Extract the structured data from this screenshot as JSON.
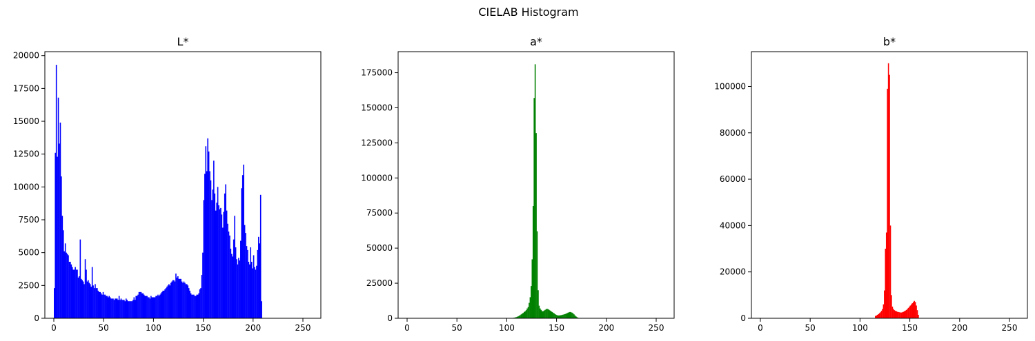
{
  "figure_title": "CIELAB Histogram",
  "chart_data": [
    {
      "type": "bar",
      "title": "L*",
      "color": "#0000ff",
      "xlim": [
        -9,
        268
      ],
      "ylim": [
        0,
        20300
      ],
      "xticks": [
        0,
        50,
        100,
        150,
        200,
        250
      ],
      "yticks": [
        0,
        2500,
        5000,
        7500,
        10000,
        12500,
        15000,
        17500,
        20000
      ],
      "x_start": 0,
      "values": [
        2300,
        12600,
        19300,
        12300,
        16800,
        13300,
        14900,
        10800,
        7800,
        6700,
        5100,
        5700,
        5000,
        4900,
        4800,
        4300,
        4300,
        4100,
        3900,
        3700,
        3700,
        3900,
        3700,
        3700,
        3100,
        3200,
        6000,
        3000,
        2900,
        2800,
        2600,
        4500,
        3700,
        2800,
        2900,
        2700,
        2600,
        2400,
        3900,
        2500,
        2300,
        2600,
        2300,
        2300,
        2100,
        2000,
        2000,
        1900,
        1800,
        2000,
        1800,
        1800,
        1700,
        1700,
        1600,
        1700,
        1600,
        1500,
        1500,
        1500,
        1400,
        1500,
        1500,
        1500,
        1400,
        1700,
        1400,
        1500,
        1400,
        1400,
        1400,
        1300,
        1500,
        1400,
        1300,
        1300,
        1300,
        1300,
        1300,
        1400,
        1600,
        1400,
        1700,
        1700,
        1800,
        2000,
        2000,
        2000,
        1900,
        1900,
        1800,
        1700,
        1700,
        1700,
        1600,
        1600,
        1500,
        1700,
        1600,
        1600,
        1600,
        1600,
        1700,
        1700,
        1800,
        1700,
        1800,
        1900,
        2000,
        2100,
        2100,
        2200,
        2300,
        2400,
        2500,
        2600,
        2500,
        2700,
        2800,
        2900,
        2900,
        2800,
        3400,
        3100,
        3200,
        3000,
        3000,
        3000,
        2800,
        2700,
        2800,
        2700,
        2600,
        2600,
        2500,
        2300,
        2100,
        1900,
        1800,
        1800,
        1800,
        1700,
        1700,
        1800,
        1800,
        1900,
        2200,
        2300,
        3300,
        5000,
        9000,
        11000,
        13100,
        11200,
        13700,
        12700,
        11200,
        10500,
        9000,
        9800,
        12000,
        9500,
        8200,
        8800,
        10000,
        8600,
        8300,
        8400,
        7900,
        6900,
        8100,
        9500,
        10200,
        8200,
        7200,
        6600,
        6300,
        5300,
        4900,
        4700,
        6000,
        7800,
        5400,
        4500,
        4100,
        4600,
        4400,
        5900,
        9900,
        10900,
        11700,
        7100,
        6500,
        5500,
        5200,
        4300,
        4100,
        5400,
        4300,
        3800,
        4800,
        3900,
        3700,
        4000,
        5200,
        6200,
        5700,
        9400,
        1300,
        0,
        0,
        0,
        0,
        0,
        0,
        0,
        0,
        0,
        0,
        0,
        0,
        0,
        0,
        0,
        0,
        0,
        0,
        0,
        0,
        0,
        0,
        0,
        0,
        0,
        0,
        0,
        0,
        0,
        0,
        0,
        0,
        0,
        0,
        0,
        0,
        0,
        0,
        0,
        0,
        0,
        0,
        0,
        0,
        0,
        0,
        0,
        0,
        0
      ]
    },
    {
      "type": "bar",
      "title": "a*",
      "color": "#008000",
      "xlim": [
        -9,
        268
      ],
      "ylim": [
        0,
        190000
      ],
      "xticks": [
        0,
        50,
        100,
        150,
        200,
        250
      ],
      "yticks": [
        0,
        25000,
        50000,
        75000,
        100000,
        125000,
        150000,
        175000
      ],
      "x_start": 104,
      "values": [
        100,
        200,
        300,
        400,
        600,
        800,
        1100,
        1400,
        1800,
        2300,
        2800,
        3300,
        3800,
        4500,
        5000,
        5800,
        7000,
        8000,
        11000,
        15000,
        23000,
        42000,
        80000,
        157000,
        181000,
        132000,
        62000,
        20000,
        9000,
        7000,
        6000,
        5000,
        5000,
        5500,
        6000,
        6500,
        6700,
        6500,
        6000,
        5500,
        5000,
        4500,
        4000,
        3500,
        3000,
        2500,
        2200,
        2000,
        2000,
        2100,
        2200,
        2400,
        2600,
        2800,
        3000,
        3300,
        3600,
        4000,
        4300,
        4500,
        4300,
        4000,
        3500,
        2800,
        2000,
        1300,
        800,
        400,
        200
      ]
    },
    {
      "type": "bar",
      "title": "b*",
      "color": "#ff0000",
      "xlim": [
        -9,
        268
      ],
      "ylim": [
        0,
        115000
      ],
      "xticks": [
        0,
        50,
        100,
        150,
        200,
        250
      ],
      "yticks": [
        0,
        20000,
        40000,
        60000,
        80000,
        100000
      ],
      "x_start": 115,
      "values": [
        1000,
        1200,
        1500,
        1800,
        2200,
        2600,
        3200,
        4000,
        6000,
        12000,
        30000,
        37000,
        99000,
        110000,
        105000,
        40000,
        10000,
        5000,
        4000,
        3500,
        3200,
        3000,
        2800,
        2700,
        2600,
        2500,
        2500,
        2600,
        2800,
        3000,
        3300,
        3600,
        4000,
        4500,
        5000,
        5500,
        6000,
        6500,
        7000,
        7500,
        7000,
        5500,
        3500,
        1500
      ]
    }
  ]
}
